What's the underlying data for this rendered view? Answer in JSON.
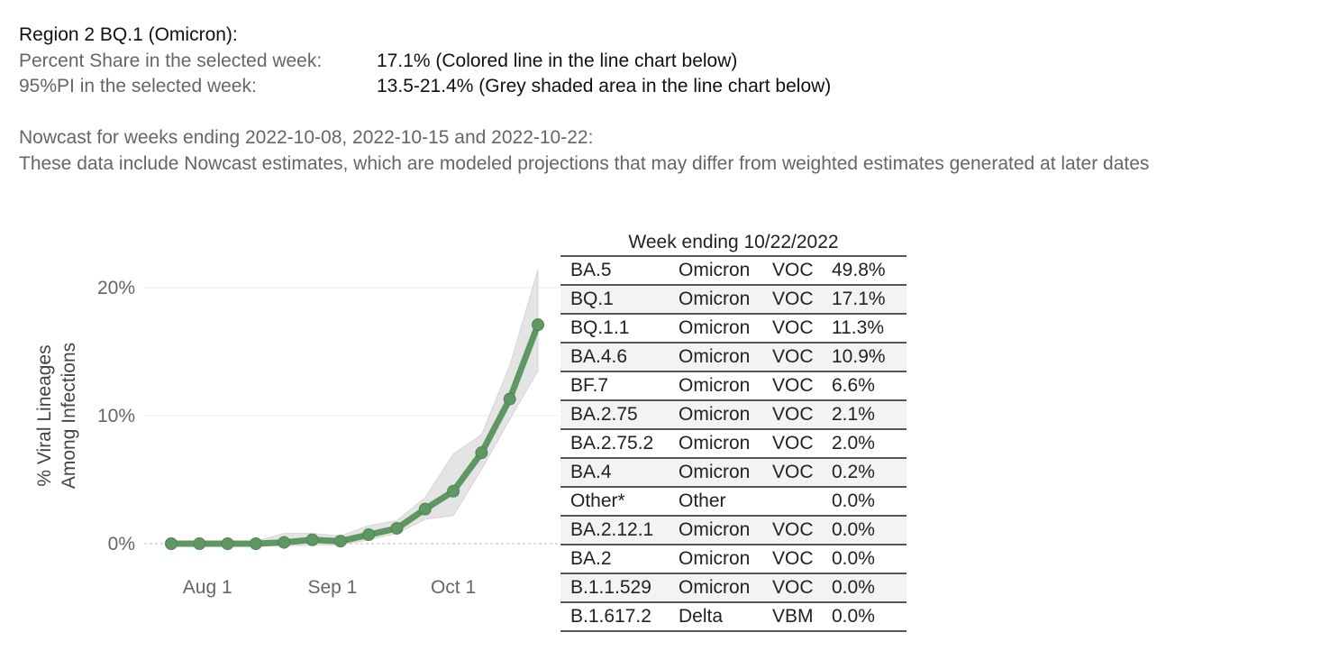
{
  "header": {
    "title": "Region 2  BQ.1 (Omicron):",
    "share_label": "Percent Share in the selected week:",
    "share_value": "17.1%  (Colored line in the line chart below)",
    "pi_label": "95%PI in the selected week:",
    "pi_value": "13.5-21.4% (Grey shaded area in the line chart below)"
  },
  "nowcast": {
    "line1": "Nowcast for weeks ending 2022-10-08, 2022-10-15 and 2022-10-22:",
    "line2": "These data include Nowcast estimates, which are modeled projections that may differ from weighted estimates generated at later dates"
  },
  "colors": {
    "line": "#5e9762",
    "band": "#e4e4e4",
    "grid": "#ebebeb",
    "zero": "#bbbbbb",
    "axis_text": "#666666"
  },
  "chart_data": {
    "type": "line",
    "ylabel": "% Viral Lineages Among Infections",
    "xlabel": "",
    "x": [
      "2022-07-23",
      "2022-07-30",
      "2022-08-06",
      "2022-08-13",
      "2022-08-20",
      "2022-08-27",
      "2022-09-03",
      "2022-09-10",
      "2022-09-17",
      "2022-09-24",
      "2022-10-01",
      "2022-10-08",
      "2022-10-15",
      "2022-10-22"
    ],
    "series": [
      {
        "values": [
          0.0,
          0.0,
          0.0,
          0.0,
          0.1,
          0.3,
          0.2,
          0.7,
          1.2,
          2.7,
          4.1,
          7.1,
          11.3,
          17.1
        ]
      }
    ],
    "interval": {
      "lower": [
        0.0,
        0.0,
        0.0,
        0.0,
        -0.2,
        -0.1,
        -0.1,
        0.3,
        0.8,
        1.9,
        2.2,
        5.8,
        9.7,
        13.5
      ],
      "upper": [
        0.1,
        0.1,
        0.1,
        0.2,
        0.8,
        0.8,
        0.6,
        1.4,
        1.8,
        3.6,
        7.0,
        8.5,
        13.9,
        21.4
      ]
    },
    "ylim": [
      -1.5,
      22
    ],
    "yticks": [
      0,
      10,
      20
    ],
    "ytick_labels": [
      "0%",
      "10%",
      "20%"
    ],
    "xticks": [
      "2022-08-01",
      "2022-09-01",
      "2022-10-01"
    ],
    "xtick_labels": [
      "Aug 1",
      "Sep 1",
      "Oct 1"
    ],
    "grid": true
  },
  "table": {
    "caption": "Week ending 10/22/2022",
    "rows": [
      {
        "lineage": "BA.5",
        "who": "Omicron",
        "type": "VOC",
        "share": "49.8%"
      },
      {
        "lineage": "BQ.1",
        "who": "Omicron",
        "type": "VOC",
        "share": "17.1%"
      },
      {
        "lineage": "BQ.1.1",
        "who": "Omicron",
        "type": "VOC",
        "share": "11.3%"
      },
      {
        "lineage": "BA.4.6",
        "who": "Omicron",
        "type": "VOC",
        "share": "10.9%"
      },
      {
        "lineage": "BF.7",
        "who": "Omicron",
        "type": "VOC",
        "share": "6.6%"
      },
      {
        "lineage": "BA.2.75",
        "who": "Omicron",
        "type": "VOC",
        "share": "2.1%"
      },
      {
        "lineage": "BA.2.75.2",
        "who": "Omicron",
        "type": "VOC",
        "share": "2.0%"
      },
      {
        "lineage": "BA.4",
        "who": "Omicron",
        "type": "VOC",
        "share": "0.2%"
      },
      {
        "lineage": "Other*",
        "who": "Other",
        "type": "",
        "share": "0.0%"
      },
      {
        "lineage": "BA.2.12.1",
        "who": "Omicron",
        "type": "VOC",
        "share": "0.0%"
      },
      {
        "lineage": "BA.2",
        "who": "Omicron",
        "type": "VOC",
        "share": "0.0%"
      },
      {
        "lineage": "B.1.1.529",
        "who": "Omicron",
        "type": "VOC",
        "share": "0.0%"
      },
      {
        "lineage": "B.1.617.2",
        "who": "Delta",
        "type": "VBM",
        "share": "0.0%"
      }
    ]
  }
}
